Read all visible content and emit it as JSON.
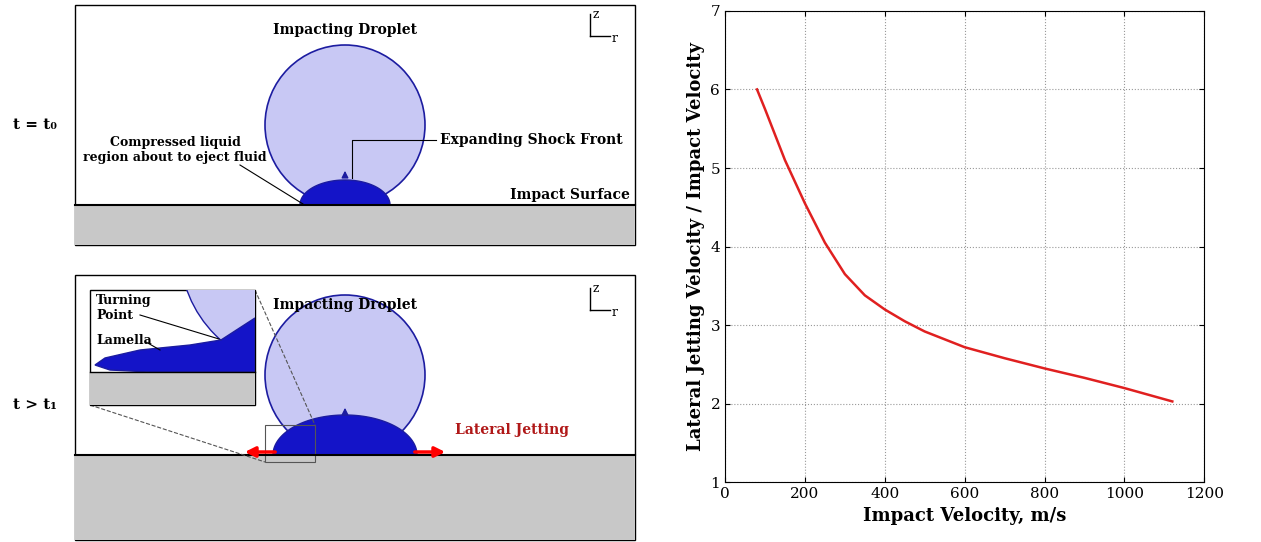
{
  "diagram": {
    "panels": [
      {
        "time": "t = t₀",
        "axes": [
          "z",
          "r"
        ],
        "droplet": "Impacting Droplet",
        "compressed": "Compressed liquid\nregion about to eject fluid",
        "shock": "Expanding Shock Front",
        "surface": "Impact Surface"
      },
      {
        "time": "t > t₁",
        "axes": [
          "z",
          "r"
        ],
        "droplet": "Impacting Droplet",
        "turning_point": "Turning\nPoint",
        "lamella": "Lamella",
        "jetting": "Lateral Jetting"
      }
    ]
  },
  "chart_data": {
    "type": "line",
    "x": [
      80,
      100,
      150,
      200,
      250,
      300,
      350,
      400,
      450,
      500,
      600,
      700,
      800,
      900,
      1000,
      1120
    ],
    "values": [
      6.0,
      5.75,
      5.1,
      4.55,
      4.05,
      3.65,
      3.38,
      3.2,
      3.05,
      2.92,
      2.72,
      2.58,
      2.45,
      2.33,
      2.2,
      2.03
    ],
    "color": "#e02020",
    "xlabel": "Impact Velocity, m/s",
    "ylabel": "Lateral Jetting Velocity / Impact Velocity",
    "xlim": [
      0,
      1200
    ],
    "xticks": [
      0,
      200,
      400,
      600,
      800,
      1000,
      1200
    ],
    "ylim": [
      1,
      7
    ],
    "yticks": [
      1,
      2,
      3,
      4,
      5,
      6,
      7
    ],
    "grid": true
  }
}
